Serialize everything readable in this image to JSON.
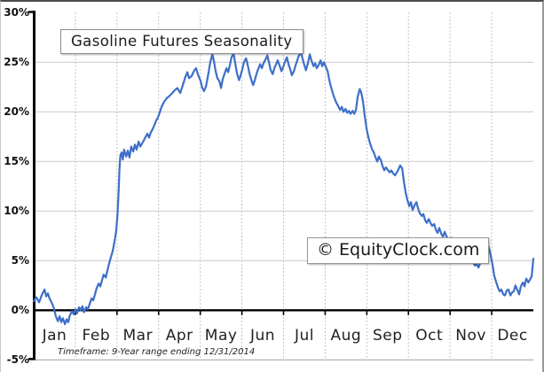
{
  "chart_data": {
    "type": "line",
    "title": "Gasoline Futures Seasonality",
    "watermark": "© EquityClock.com",
    "footnote": "Timeframe: 9-Year range ending 12/31/2014",
    "categories": [
      "Jan",
      "Feb",
      "Mar",
      "Apr",
      "May",
      "Jun",
      "Jul",
      "Aug",
      "Sep",
      "Oct",
      "Nov",
      "Dec"
    ],
    "yticks": {
      "values": [
        30,
        25,
        20,
        15,
        10,
        5,
        0,
        -5
      ],
      "labels": [
        "30%",
        "25%",
        "20%",
        "15%",
        "10%",
        "5%",
        "0%",
        "-5%"
      ]
    },
    "ylim": [
      -5,
      30
    ],
    "xlim": [
      0,
      12
    ],
    "grid": true,
    "legend": "none",
    "line_color": "#3E6FC8",
    "axis_color": "#000000",
    "grid_color": "#c9c9c9",
    "series": [
      {
        "name": "Gasoline Futures Seasonality (9-Year avg % change)",
        "x_unit": "month (0 = Jan 1, 12 = Dec 31)",
        "y_unit": "percent",
        "points": [
          [
            0.0,
            0.9
          ],
          [
            0.06,
            1.3
          ],
          [
            0.13,
            0.8
          ],
          [
            0.19,
            1.5
          ],
          [
            0.26,
            2.1
          ],
          [
            0.3,
            1.4
          ],
          [
            0.34,
            1.7
          ],
          [
            0.38,
            1.2
          ],
          [
            0.45,
            0.6
          ],
          [
            0.49,
            0.1
          ],
          [
            0.53,
            -0.6
          ],
          [
            0.58,
            -1.1
          ],
          [
            0.62,
            -0.6
          ],
          [
            0.66,
            -1.2
          ],
          [
            0.7,
            -0.8
          ],
          [
            0.75,
            -1.4
          ],
          [
            0.79,
            -0.9
          ],
          [
            0.83,
            -1.2
          ],
          [
            0.87,
            -0.5
          ],
          [
            0.92,
            -0.1
          ],
          [
            0.96,
            -0.4
          ],
          [
            1.0,
            0.1
          ],
          [
            1.04,
            -0.3
          ],
          [
            1.09,
            0.3
          ],
          [
            1.13,
            0.0
          ],
          [
            1.17,
            0.4
          ],
          [
            1.21,
            -0.2
          ],
          [
            1.26,
            0.3
          ],
          [
            1.3,
            0.1
          ],
          [
            1.34,
            0.6
          ],
          [
            1.39,
            1.2
          ],
          [
            1.43,
            1.0
          ],
          [
            1.47,
            1.6
          ],
          [
            1.51,
            2.2
          ],
          [
            1.56,
            2.7
          ],
          [
            1.6,
            2.4
          ],
          [
            1.64,
            3.0
          ],
          [
            1.68,
            3.6
          ],
          [
            1.73,
            3.3
          ],
          [
            1.77,
            4.0
          ],
          [
            1.81,
            4.7
          ],
          [
            1.85,
            5.3
          ],
          [
            1.9,
            6.0
          ],
          [
            1.94,
            6.9
          ],
          [
            1.98,
            8.0
          ],
          [
            2.01,
            9.5
          ],
          [
            2.04,
            12.0
          ],
          [
            2.06,
            14.2
          ],
          [
            2.08,
            15.6
          ],
          [
            2.11,
            15.9
          ],
          [
            2.14,
            15.2
          ],
          [
            2.17,
            16.2
          ],
          [
            2.22,
            15.5
          ],
          [
            2.26,
            16.1
          ],
          [
            2.3,
            15.4
          ],
          [
            2.34,
            16.5
          ],
          [
            2.39,
            16.0
          ],
          [
            2.43,
            16.7
          ],
          [
            2.47,
            16.2
          ],
          [
            2.52,
            17.0
          ],
          [
            2.56,
            16.5
          ],
          [
            2.6,
            16.8
          ],
          [
            2.64,
            17.1
          ],
          [
            2.69,
            17.5
          ],
          [
            2.73,
            17.8
          ],
          [
            2.77,
            17.4
          ],
          [
            2.81,
            17.9
          ],
          [
            2.86,
            18.3
          ],
          [
            2.9,
            18.7
          ],
          [
            2.94,
            19.1
          ],
          [
            2.98,
            19.4
          ],
          [
            3.03,
            20.0
          ],
          [
            3.07,
            20.5
          ],
          [
            3.13,
            21.0
          ],
          [
            3.2,
            21.4
          ],
          [
            3.26,
            21.6
          ],
          [
            3.33,
            21.9
          ],
          [
            3.39,
            22.2
          ],
          [
            3.45,
            22.4
          ],
          [
            3.52,
            21.9
          ],
          [
            3.58,
            22.7
          ],
          [
            3.64,
            23.5
          ],
          [
            3.69,
            24.0
          ],
          [
            3.73,
            23.4
          ],
          [
            3.79,
            23.6
          ],
          [
            3.86,
            24.2
          ],
          [
            3.9,
            24.4
          ],
          [
            3.94,
            23.8
          ],
          [
            4.01,
            23.1
          ],
          [
            4.05,
            22.4
          ],
          [
            4.09,
            22.1
          ],
          [
            4.14,
            22.6
          ],
          [
            4.2,
            24.0
          ],
          [
            4.24,
            25.0
          ],
          [
            4.29,
            25.8
          ],
          [
            4.33,
            25.1
          ],
          [
            4.37,
            24.1
          ],
          [
            4.41,
            23.4
          ],
          [
            4.46,
            23.1
          ],
          [
            4.5,
            22.4
          ],
          [
            4.54,
            23.3
          ],
          [
            4.58,
            23.8
          ],
          [
            4.63,
            24.4
          ],
          [
            4.67,
            24.0
          ],
          [
            4.71,
            24.7
          ],
          [
            4.75,
            25.5
          ],
          [
            4.8,
            25.9
          ],
          [
            4.84,
            24.9
          ],
          [
            4.88,
            23.9
          ],
          [
            4.93,
            23.2
          ],
          [
            4.97,
            23.7
          ],
          [
            5.01,
            24.3
          ],
          [
            5.05,
            25.0
          ],
          [
            5.1,
            25.4
          ],
          [
            5.14,
            24.7
          ],
          [
            5.18,
            23.9
          ],
          [
            5.22,
            23.3
          ],
          [
            5.27,
            22.7
          ],
          [
            5.31,
            23.2
          ],
          [
            5.35,
            23.8
          ],
          [
            5.39,
            24.3
          ],
          [
            5.44,
            24.8
          ],
          [
            5.48,
            24.4
          ],
          [
            5.52,
            24.9
          ],
          [
            5.57,
            25.3
          ],
          [
            5.61,
            25.7
          ],
          [
            5.65,
            25.0
          ],
          [
            5.69,
            24.2
          ],
          [
            5.74,
            23.8
          ],
          [
            5.78,
            24.4
          ],
          [
            5.82,
            24.8
          ],
          [
            5.86,
            25.2
          ],
          [
            5.91,
            24.6
          ],
          [
            5.95,
            24.1
          ],
          [
            5.99,
            24.5
          ],
          [
            6.03,
            25.0
          ],
          [
            6.08,
            25.5
          ],
          [
            6.12,
            24.8
          ],
          [
            6.16,
            24.3
          ],
          [
            6.2,
            23.7
          ],
          [
            6.25,
            24.1
          ],
          [
            6.29,
            24.7
          ],
          [
            6.33,
            25.2
          ],
          [
            6.37,
            25.7
          ],
          [
            6.42,
            26.0
          ],
          [
            6.46,
            25.3
          ],
          [
            6.5,
            24.7
          ],
          [
            6.54,
            24.2
          ],
          [
            6.59,
            25.0
          ],
          [
            6.63,
            25.8
          ],
          [
            6.67,
            25.2
          ],
          [
            6.72,
            24.6
          ],
          [
            6.76,
            24.9
          ],
          [
            6.8,
            24.4
          ],
          [
            6.84,
            24.7
          ],
          [
            6.89,
            25.2
          ],
          [
            6.93,
            24.6
          ],
          [
            6.97,
            25.0
          ],
          [
            7.01,
            24.6
          ],
          [
            7.06,
            24.1
          ],
          [
            7.1,
            23.2
          ],
          [
            7.14,
            22.5
          ],
          [
            7.19,
            21.8
          ],
          [
            7.23,
            21.3
          ],
          [
            7.27,
            20.9
          ],
          [
            7.31,
            20.6
          ],
          [
            7.36,
            20.2
          ],
          [
            7.4,
            20.5
          ],
          [
            7.44,
            20.0
          ],
          [
            7.49,
            20.3
          ],
          [
            7.53,
            19.9
          ],
          [
            7.57,
            20.1
          ],
          [
            7.61,
            19.8
          ],
          [
            7.66,
            20.1
          ],
          [
            7.7,
            19.8
          ],
          [
            7.74,
            20.2
          ],
          [
            7.78,
            21.5
          ],
          [
            7.83,
            22.3
          ],
          [
            7.87,
            21.9
          ],
          [
            7.91,
            21.0
          ],
          [
            7.95,
            19.6
          ],
          [
            8.0,
            18.2
          ],
          [
            8.04,
            17.4
          ],
          [
            8.08,
            16.8
          ],
          [
            8.13,
            16.2
          ],
          [
            8.17,
            15.9
          ],
          [
            8.21,
            15.4
          ],
          [
            8.25,
            15.0
          ],
          [
            8.29,
            15.5
          ],
          [
            8.34,
            15.1
          ],
          [
            8.38,
            14.5
          ],
          [
            8.42,
            14.1
          ],
          [
            8.46,
            14.4
          ],
          [
            8.51,
            14.1
          ],
          [
            8.55,
            13.9
          ],
          [
            8.59,
            14.1
          ],
          [
            8.63,
            13.8
          ],
          [
            8.68,
            13.6
          ],
          [
            8.72,
            13.9
          ],
          [
            8.76,
            14.2
          ],
          [
            8.8,
            14.6
          ],
          [
            8.85,
            14.3
          ],
          [
            8.89,
            13.0
          ],
          [
            8.93,
            11.9
          ],
          [
            8.97,
            11.2
          ],
          [
            9.02,
            10.5
          ],
          [
            9.06,
            10.9
          ],
          [
            9.1,
            10.1
          ],
          [
            9.15,
            10.6
          ],
          [
            9.19,
            10.9
          ],
          [
            9.23,
            10.3
          ],
          [
            9.27,
            9.8
          ],
          [
            9.32,
            9.5
          ],
          [
            9.36,
            9.7
          ],
          [
            9.4,
            9.1
          ],
          [
            9.44,
            8.8
          ],
          [
            9.49,
            9.2
          ],
          [
            9.53,
            8.8
          ],
          [
            9.57,
            8.5
          ],
          [
            9.62,
            8.7
          ],
          [
            9.66,
            8.1
          ],
          [
            9.7,
            7.8
          ],
          [
            9.74,
            8.3
          ],
          [
            9.79,
            7.7
          ],
          [
            9.83,
            7.4
          ],
          [
            9.87,
            7.9
          ],
          [
            9.91,
            7.5
          ],
          [
            9.96,
            7.1
          ],
          [
            10.0,
            6.9
          ],
          [
            10.04,
            7.3
          ],
          [
            10.08,
            6.7
          ],
          [
            10.13,
            7.0
          ],
          [
            10.17,
            6.4
          ],
          [
            10.21,
            6.7
          ],
          [
            10.25,
            6.1
          ],
          [
            10.3,
            5.8
          ],
          [
            10.34,
            6.2
          ],
          [
            10.38,
            5.6
          ],
          [
            10.43,
            5.3
          ],
          [
            10.47,
            5.7
          ],
          [
            10.51,
            5.1
          ],
          [
            10.55,
            4.8
          ],
          [
            10.6,
            4.5
          ],
          [
            10.64,
            4.7
          ],
          [
            10.68,
            4.3
          ],
          [
            10.72,
            4.7
          ],
          [
            10.77,
            5.4
          ],
          [
            10.81,
            6.1
          ],
          [
            10.85,
            6.6
          ],
          [
            10.89,
            6.8
          ],
          [
            10.94,
            6.2
          ],
          [
            10.98,
            5.5
          ],
          [
            11.02,
            4.6
          ],
          [
            11.06,
            3.5
          ],
          [
            11.11,
            2.8
          ],
          [
            11.15,
            2.3
          ],
          [
            11.19,
            1.9
          ],
          [
            11.23,
            2.1
          ],
          [
            11.28,
            1.6
          ],
          [
            11.32,
            1.5
          ],
          [
            11.36,
            2.0
          ],
          [
            11.4,
            2.1
          ],
          [
            11.45,
            1.5
          ],
          [
            11.49,
            1.8
          ],
          [
            11.53,
            1.9
          ],
          [
            11.57,
            2.5
          ],
          [
            11.62,
            2.0
          ],
          [
            11.66,
            1.6
          ],
          [
            11.7,
            2.4
          ],
          [
            11.75,
            2.8
          ],
          [
            11.79,
            2.4
          ],
          [
            11.83,
            3.2
          ],
          [
            11.88,
            2.8
          ],
          [
            11.92,
            3.1
          ],
          [
            11.96,
            3.4
          ],
          [
            12.0,
            5.2
          ]
        ]
      }
    ]
  }
}
